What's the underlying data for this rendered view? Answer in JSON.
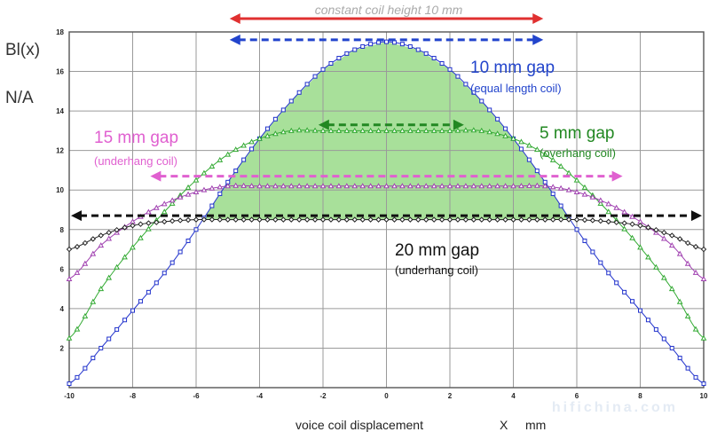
{
  "chart_data": {
    "type": "line",
    "ylabel_line1": "Bl(x)",
    "ylabel_line2": "N/A",
    "xlabel_text": "voice coil displacement",
    "xlabel_var": "X",
    "xlabel_unit": "mm",
    "xlim": [
      -10,
      10
    ],
    "ylim": [
      0,
      18
    ],
    "xticks": [
      "-10",
      "-8",
      "-6",
      "-4",
      "-2",
      "0",
      "2",
      "4",
      "6",
      "8",
      "10"
    ],
    "yticks": [
      "2",
      "4",
      "6",
      "8",
      "10",
      "12",
      "14",
      "16",
      "18"
    ],
    "grid": true,
    "x": [
      -10,
      -9,
      -8,
      -7,
      -6,
      -5,
      -4,
      -3,
      -2,
      -1,
      0,
      1,
      2,
      3,
      4,
      5,
      6,
      7,
      8,
      9,
      10
    ],
    "series": [
      {
        "key": "g10",
        "color": "#2233cc",
        "marker": "square",
        "values": [
          0.2,
          2.0,
          3.9,
          5.8,
          8.0,
          10.4,
          12.6,
          14.5,
          16.1,
          17.1,
          17.5,
          17.1,
          16.1,
          14.5,
          12.6,
          10.4,
          8.0,
          5.8,
          3.9,
          2.0,
          0.2
        ]
      },
      {
        "key": "g5",
        "color": "#33aa33",
        "marker": "triangle",
        "values": [
          2.5,
          5.0,
          7.1,
          8.9,
          10.5,
          11.8,
          12.6,
          13.0,
          13.0,
          13.0,
          13.0,
          13.0,
          13.0,
          13.0,
          12.6,
          11.8,
          10.5,
          8.9,
          7.1,
          5.0,
          2.5
        ]
      },
      {
        "key": "g15",
        "color": "#a040b0",
        "marker": "triangle",
        "values": [
          5.5,
          7.2,
          8.4,
          9.3,
          9.9,
          10.2,
          10.2,
          10.2,
          10.2,
          10.2,
          10.2,
          10.2,
          10.2,
          10.2,
          10.2,
          10.2,
          9.9,
          9.3,
          8.4,
          7.2,
          5.5
        ]
      },
      {
        "key": "g20",
        "color": "#222222",
        "marker": "diamond",
        "values": [
          7.0,
          7.7,
          8.2,
          8.4,
          8.5,
          8.5,
          8.5,
          8.5,
          8.5,
          8.5,
          8.5,
          8.5,
          8.5,
          8.5,
          8.5,
          8.5,
          8.5,
          8.4,
          8.2,
          7.7,
          7.0
        ]
      }
    ],
    "fill_color": "#a8e09a",
    "annotations": [
      {
        "key": "a_const",
        "text": "constant coil height 10 mm",
        "color": "#e03030",
        "style": "solid",
        "x1": -5,
        "x2": 5,
        "y": 19.7
      },
      {
        "key": "a_10",
        "text": "10 mm gap",
        "text2": "(equal length coil)",
        "color": "#2244cc",
        "style": "dashed",
        "x1": -5,
        "x2": 5,
        "y": 17.6
      },
      {
        "key": "a_5",
        "text": "5 mm gap",
        "text2": "(overhang coil)",
        "color": "#228822",
        "style": "dashed",
        "x1": -2.2,
        "x2": 2.5,
        "y": 13.3
      },
      {
        "key": "a_15",
        "text": "15 mm gap",
        "text2": "(underhang coil)",
        "color": "#e060d0",
        "style": "dashed",
        "x1": -7.5,
        "x2": 7.5,
        "y": 10.7
      },
      {
        "key": "a_20",
        "text": "20 mm gap",
        "text2": "(underhang coil)",
        "color": "#111111",
        "style": "dashed",
        "x1": -10,
        "x2": 10,
        "y": 8.7
      }
    ],
    "watermark": "hifichina.com"
  }
}
